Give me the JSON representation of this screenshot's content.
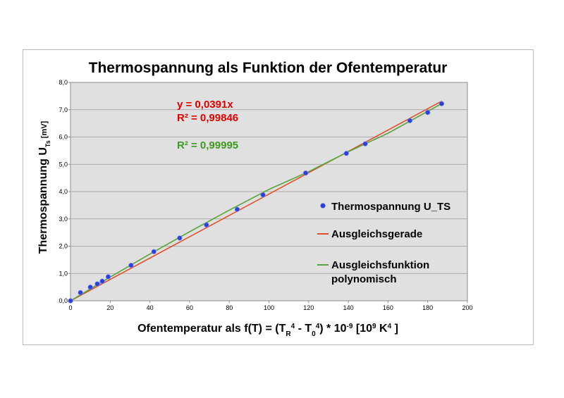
{
  "chart_data": {
    "type": "scatter",
    "title": "Thermospannung als Funktion der Ofentemperatur",
    "xlabel": {
      "main": "Ofentemperatur als f(T) = (T",
      "sub1": "R",
      "sup1": "4",
      "mid": " - T",
      "sub2": "0",
      "sup2": "4",
      "post": ") * 10",
      "sup3": "-9",
      "unit1": " [10",
      "sup4": "9",
      "unit2": " K",
      "sup5": "4",
      "end": " ]"
    },
    "ylabel": {
      "main": "Thermospannung U",
      "sub": "Ts",
      "unit": "  [mV]"
    },
    "xlim": [
      0,
      200
    ],
    "ylim": [
      0,
      8
    ],
    "xticks": [
      0,
      20,
      40,
      60,
      80,
      100,
      120,
      140,
      160,
      180,
      200
    ],
    "yticks": [
      0,
      1,
      2,
      3,
      4,
      5,
      6,
      7,
      8
    ],
    "ytick_labels": [
      "0,0",
      "1,0",
      "2,0",
      "3,0",
      "4,0",
      "5,0",
      "6,0",
      "7,0",
      "8,0"
    ],
    "grid": true,
    "series": [
      {
        "name": "Thermospannung U_TS",
        "kind": "scatter",
        "color": "#2e3fe0",
        "x": [
          0,
          5,
          10,
          13.5,
          16,
          19,
          30.5,
          42,
          55,
          68.5,
          84,
          97,
          118.5,
          139,
          148.5,
          171,
          180,
          187
        ],
        "y": [
          0,
          0.3,
          0.5,
          0.62,
          0.72,
          0.88,
          1.3,
          1.8,
          2.3,
          2.78,
          3.35,
          3.88,
          4.68,
          5.4,
          5.75,
          6.6,
          6.9,
          7.22
        ]
      },
      {
        "name": "Ausgleichsgerade",
        "kind": "line",
        "color": "#e0502a",
        "x": [
          0,
          187
        ],
        "y": [
          0,
          7.31
        ]
      },
      {
        "name": "Ausgleichsfunktion polynomisch",
        "name_lines": [
          "Ausgleichsfunktion",
          "polynomisch"
        ],
        "kind": "line",
        "color": "#57a639",
        "x": [
          0,
          20,
          40,
          60,
          80,
          100,
          120,
          140,
          160,
          187
        ],
        "y": [
          0,
          0.87,
          1.71,
          2.53,
          3.32,
          4.08,
          4.73,
          5.46,
          6.14,
          7.22
        ]
      }
    ],
    "annotations": [
      {
        "text": "y = 0,0391x",
        "color": "#e00000"
      },
      {
        "text": "R² = 0,99846",
        "color": "#e00000"
      },
      {
        "text": "R² = 0,99995",
        "color": "#3f9a22"
      }
    ],
    "legend": "right"
  }
}
